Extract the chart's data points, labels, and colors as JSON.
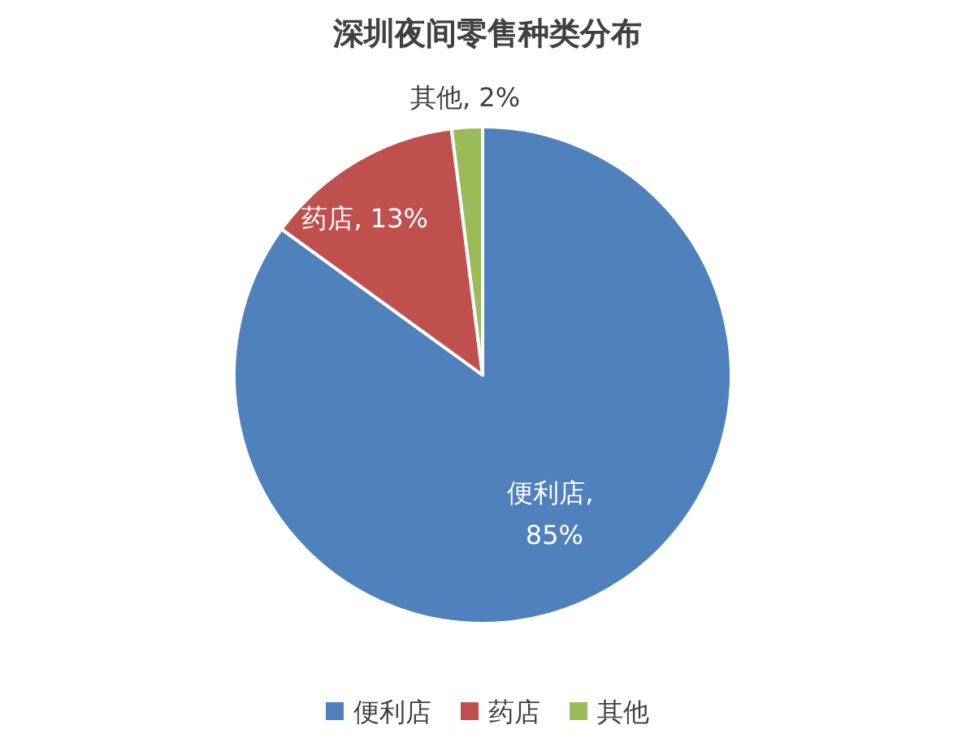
{
  "chart_data": {
    "type": "pie",
    "title": "深圳夜间零售种类分布",
    "categories": [
      "便利店",
      "药店",
      "其他"
    ],
    "values": [
      85,
      13,
      2
    ],
    "colors": [
      "#4f81bd",
      "#c0504d",
      "#9bbb59"
    ],
    "value_labels": [
      "便利店, 85%",
      "药店, 13%",
      "其他, 2%"
    ],
    "legend": "bottom"
  }
}
